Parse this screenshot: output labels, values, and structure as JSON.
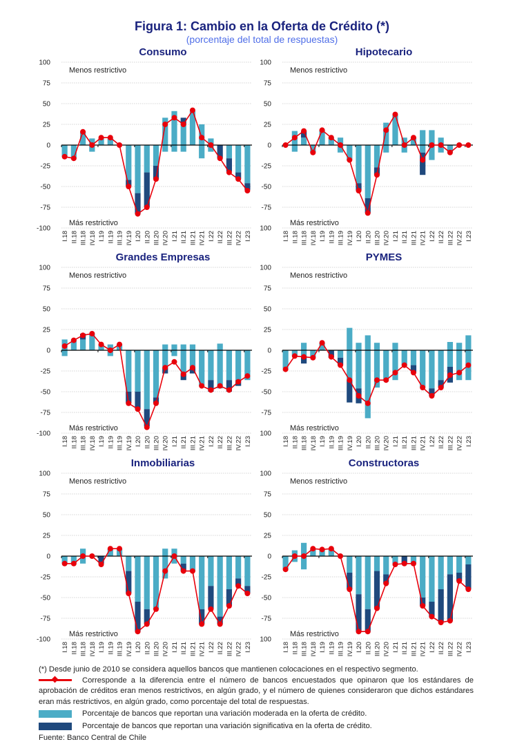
{
  "header": {
    "title": "Figura 1: Cambio en la Oferta de Crédito (*)",
    "subtitle": "(porcentaje del total de respuestas)"
  },
  "colors": {
    "moderate": "#4bacc6",
    "significant": "#1f497d",
    "net_line": "#e8000b",
    "title": "#1a237e",
    "subtitle": "#4f6ee8"
  },
  "chart_data": [
    {
      "type": "bar",
      "title": "Consumo",
      "annotation_top": "Menos restrictivo",
      "annotation_bottom": "Más restrictivo",
      "ylim": [
        -100,
        100
      ],
      "yticks": [
        "100",
        "75",
        "50",
        "25",
        "0",
        "-25",
        "-50",
        "-75",
        "-100"
      ],
      "categories": [
        "I.18",
        "II.18",
        "III.18",
        "IV.18",
        "I.19",
        "II.19",
        "III.19",
        "IV.19",
        "I.20",
        "II.20",
        "III.20",
        "IV.20",
        "I.21",
        "II.21",
        "III.21",
        "IV.21",
        "I.22",
        "II.22",
        "III.22",
        "IV.22",
        "I.23"
      ],
      "series": [
        {
          "name": "moderada_positiva",
          "values": [
            0,
            0,
            16,
            8,
            8,
            8,
            0,
            0,
            0,
            0,
            0,
            33,
            41,
            25,
            41,
            25,
            8,
            0,
            0,
            0,
            0
          ]
        },
        {
          "name": "significativa_positiva",
          "values": [
            0,
            0,
            0,
            0,
            0,
            0,
            0,
            0,
            0,
            0,
            0,
            0,
            0,
            8,
            0,
            0,
            0,
            0,
            0,
            0,
            0
          ]
        },
        {
          "name": "moderada_negativa",
          "values": [
            -14,
            -16,
            0,
            -8,
            0,
            0,
            0,
            -42,
            -58,
            -33,
            -25,
            -8,
            -8,
            -8,
            0,
            -16,
            -8,
            0,
            -16,
            -33,
            -46
          ]
        },
        {
          "name": "significativa_negativa",
          "values": [
            0,
            0,
            0,
            0,
            0,
            0,
            0,
            -8,
            -25,
            -42,
            -16,
            0,
            0,
            0,
            0,
            0,
            0,
            -16,
            -16,
            -8,
            -8
          ]
        },
        {
          "name": "neto",
          "values": [
            -14,
            -16,
            16,
            0,
            9,
            9,
            0,
            -50,
            -83,
            -75,
            -41,
            25,
            33,
            25,
            42,
            9,
            0,
            -16,
            -33,
            -41,
            -55
          ]
        }
      ]
    },
    {
      "type": "bar",
      "title": "Hipotecario",
      "annotation_top": "Menos restrictivo",
      "annotation_bottom": "Más restrictivo",
      "ylim": [
        -100,
        100
      ],
      "yticks": [
        "100",
        "75",
        "50",
        "25",
        "0",
        "-25",
        "-50",
        "-75",
        "100"
      ],
      "categories": [
        "I.18",
        "II.18",
        "III.18",
        "IV.18",
        "I.19",
        "II.19",
        "III.19",
        "IV.19",
        "I.20",
        "II.20",
        "III.20",
        "IV.20",
        "I.21",
        "II.21",
        "III.21",
        "IV.21",
        "I.22",
        "II.22",
        "III.22",
        "IV.22",
        "I.23"
      ],
      "series": [
        {
          "name": "moderada_positiva",
          "values": [
            0,
            17,
            9,
            0,
            18,
            9,
            9,
            0,
            0,
            0,
            0,
            27,
            36,
            9,
            9,
            18,
            18,
            9,
            0,
            0,
            0
          ]
        },
        {
          "name": "significativa_positiva",
          "values": [
            0,
            0,
            8,
            0,
            0,
            0,
            0,
            0,
            0,
            0,
            0,
            0,
            0,
            0,
            0,
            0,
            0,
            0,
            0,
            0,
            0
          ]
        },
        {
          "name": "moderada_negativa",
          "values": [
            0,
            -8,
            0,
            -9,
            0,
            0,
            -9,
            -18,
            -46,
            -64,
            -27,
            -9,
            0,
            -9,
            0,
            -9,
            -18,
            -9,
            -9,
            0,
            0
          ]
        },
        {
          "name": "significativa_negativa",
          "values": [
            0,
            0,
            0,
            0,
            0,
            0,
            0,
            0,
            -9,
            -18,
            -9,
            0,
            0,
            0,
            0,
            -27,
            0,
            0,
            0,
            0,
            0
          ]
        },
        {
          "name": "neto",
          "values": [
            0,
            9,
            17,
            -9,
            18,
            9,
            0,
            -18,
            -55,
            -82,
            -36,
            18,
            37,
            0,
            9,
            -18,
            0,
            0,
            -9,
            0,
            0
          ]
        }
      ]
    },
    {
      "type": "bar",
      "title": "Grandes Empresas",
      "annotation_top": "Menos restrictivo",
      "annotation_bottom": "Más restrictivo",
      "ylim": [
        -100,
        100
      ],
      "yticks": [
        "100",
        "75",
        "50",
        "25",
        "0",
        "-25",
        "-50",
        "-75",
        "-100"
      ],
      "categories": [
        "I.18",
        "II.18",
        "III.18",
        "IV.18",
        "I.19",
        "II.19",
        "III.19",
        "IV.19",
        "I.20",
        "II.20",
        "III.20",
        "IV.20",
        "I.21",
        "II.21",
        "III.21",
        "IV.21",
        "I.22",
        "II.22",
        "III.22",
        "IV.22",
        "I.23"
      ],
      "series": [
        {
          "name": "moderada_positiva",
          "values": [
            13,
            13,
            13,
            20,
            7,
            7,
            7,
            0,
            0,
            0,
            0,
            7,
            7,
            7,
            7,
            0,
            0,
            8,
            0,
            0,
            0
          ]
        },
        {
          "name": "significativa_positiva",
          "values": [
            0,
            0,
            7,
            0,
            0,
            0,
            0,
            0,
            0,
            0,
            0,
            0,
            0,
            0,
            0,
            0,
            0,
            0,
            0,
            0,
            0
          ]
        },
        {
          "name": "moderada_negativa",
          "values": [
            -7,
            0,
            0,
            0,
            0,
            -7,
            0,
            -50,
            -50,
            -71,
            -57,
            -21,
            -7,
            -29,
            -21,
            -43,
            -36,
            -46,
            -36,
            -36,
            -36
          ]
        },
        {
          "name": "significativa_negativa",
          "values": [
            0,
            0,
            0,
            0,
            0,
            0,
            0,
            -14,
            -21,
            -21,
            -7,
            -7,
            0,
            -7,
            -7,
            0,
            -14,
            0,
            -14,
            -7,
            0
          ]
        },
        {
          "name": "neto",
          "values": [
            5,
            12,
            18,
            20,
            7,
            0,
            7,
            -64,
            -71,
            -93,
            -64,
            -21,
            -14,
            -29,
            -21,
            -43,
            -48,
            -43,
            -48,
            -38,
            -31
          ]
        }
      ]
    },
    {
      "type": "bar",
      "title": "PYMES",
      "annotation_top": "Menos restrictivo",
      "annotation_bottom": "Más restrictivo",
      "ylim": [
        -100,
        100
      ],
      "yticks": [
        "100",
        "75",
        "50",
        "25",
        "0",
        "-25",
        "-50",
        "-75",
        "100"
      ],
      "categories": [
        "I.18",
        "II.18",
        "III.18",
        "IV.18",
        "I.19",
        "II.19",
        "III.19",
        "IV.19",
        "I.20",
        "II.20",
        "III.20",
        "IV.20",
        "I.21",
        "II.21",
        "III.21",
        "IV.21",
        "I.22",
        "II.22",
        "III.22",
        "IV.22",
        "I.23"
      ],
      "series": [
        {
          "name": "moderada_positiva",
          "values": [
            0,
            0,
            9,
            0,
            9,
            0,
            0,
            27,
            9,
            18,
            9,
            0,
            9,
            0,
            0,
            0,
            0,
            0,
            10,
            9,
            18
          ]
        },
        {
          "name": "significativa_positiva",
          "values": [
            0,
            0,
            0,
            0,
            0,
            0,
            0,
            0,
            0,
            0,
            0,
            0,
            0,
            0,
            0,
            0,
            0,
            0,
            0,
            0,
            0
          ]
        },
        {
          "name": "moderada_negativa",
          "values": [
            -22,
            -7,
            -7,
            -9,
            0,
            0,
            -9,
            -36,
            -46,
            -82,
            -45,
            -36,
            -36,
            -18,
            -18,
            -45,
            -46,
            -36,
            -20,
            -36,
            -36
          ]
        },
        {
          "name": "significativa_negativa",
          "values": [
            0,
            0,
            -9,
            0,
            0,
            -9,
            -9,
            -27,
            -18,
            0,
            0,
            0,
            0,
            0,
            -9,
            0,
            -9,
            -9,
            -19,
            0,
            0
          ]
        },
        {
          "name": "neto",
          "values": [
            -23,
            -7,
            -8,
            -9,
            9,
            -8,
            -18,
            -36,
            -55,
            -64,
            -36,
            -36,
            -27,
            -18,
            -27,
            -45,
            -55,
            -45,
            -30,
            -27,
            -18
          ]
        }
      ]
    },
    {
      "type": "bar",
      "title": "Inmobiliarias",
      "annotation_top": "Menos restrictivo",
      "annotation_bottom": "Más restrictivo",
      "ylim": [
        -100,
        100
      ],
      "yticks": [
        "100",
        "75",
        "50",
        "25",
        "0",
        "-25",
        "-50",
        "-75",
        "-100"
      ],
      "categories": [
        "I.18",
        "II.18",
        "III.18",
        "IV.18",
        "I.19",
        "II.19",
        "III.19",
        "IV.19",
        "I.20",
        "II.20",
        "III.20",
        "IV.20",
        "I.21",
        "II.21",
        "III.21",
        "IV.21",
        "I.22",
        "II.22",
        "III.22",
        "IV.22",
        "I.23"
      ],
      "series": [
        {
          "name": "moderada_positiva",
          "values": [
            0,
            0,
            9,
            0,
            0,
            9,
            9,
            0,
            0,
            0,
            0,
            9,
            9,
            0,
            0,
            0,
            0,
            0,
            0,
            0,
            0
          ]
        },
        {
          "name": "significativa_positiva",
          "values": [
            0,
            0,
            0,
            0,
            0,
            0,
            0,
            0,
            0,
            0,
            0,
            0,
            0,
            0,
            0,
            0,
            0,
            0,
            0,
            0,
            0
          ]
        },
        {
          "name": "moderada_negativa",
          "values": [
            -9,
            -9,
            -9,
            0,
            0,
            0,
            0,
            -18,
            -55,
            -64,
            -64,
            -27,
            -9,
            -9,
            -18,
            -64,
            -36,
            -73,
            -40,
            -27,
            -36
          ]
        },
        {
          "name": "significativa_negativa",
          "values": [
            0,
            0,
            0,
            0,
            -9,
            0,
            0,
            -27,
            -36,
            -18,
            0,
            0,
            0,
            -9,
            0,
            -18,
            -28,
            -9,
            -20,
            -9,
            -9
          ]
        },
        {
          "name": "neto",
          "values": [
            -9,
            -9,
            0,
            0,
            -10,
            9,
            9,
            -45,
            -91,
            -82,
            -64,
            -18,
            0,
            -18,
            -18,
            -82,
            -64,
            -82,
            -60,
            -36,
            -45
          ]
        }
      ]
    },
    {
      "type": "bar",
      "title": "Constructoras",
      "annotation_top": "Menos restrictivo",
      "annotation_bottom": "Más restrictivo",
      "ylim": [
        -100,
        100
      ],
      "yticks": [
        "100",
        "75",
        "50",
        "25",
        "0",
        "-25",
        "-50",
        "-75",
        "100"
      ],
      "categories": [
        "I.18",
        "II.18",
        "III.18",
        "IV.18",
        "I.19",
        "II.19",
        "III.19",
        "IV.19",
        "I.20",
        "II.20",
        "III.20",
        "IV.20",
        "I.21",
        "II.21",
        "III.21",
        "IV.21",
        "I.22",
        "II.22",
        "III.22",
        "IV.22",
        "I.23"
      ],
      "series": [
        {
          "name": "moderada_positiva",
          "values": [
            0,
            7,
            16,
            9,
            9,
            9,
            0,
            0,
            0,
            0,
            0,
            0,
            0,
            0,
            0,
            0,
            0,
            0,
            0,
            0,
            0
          ]
        },
        {
          "name": "significativa_positiva",
          "values": [
            0,
            0,
            0,
            0,
            0,
            0,
            0,
            0,
            0,
            0,
            0,
            0,
            0,
            0,
            0,
            0,
            0,
            0,
            0,
            0,
            0
          ]
        },
        {
          "name": "moderada_negativa",
          "values": [
            -16,
            -7,
            -16,
            0,
            0,
            0,
            0,
            -20,
            -46,
            -64,
            -18,
            -22,
            -9,
            0,
            -9,
            -50,
            -55,
            -40,
            -22,
            -20,
            -10
          ]
        },
        {
          "name": "significativa_negativa",
          "values": [
            0,
            0,
            0,
            0,
            0,
            0,
            0,
            -20,
            -45,
            -27,
            -45,
            -11,
            0,
            -9,
            0,
            -10,
            -18,
            -40,
            -56,
            -10,
            -30
          ]
        },
        {
          "name": "neto",
          "values": [
            -16,
            0,
            0,
            9,
            8,
            9,
            0,
            -40,
            -91,
            -91,
            -63,
            -33,
            -10,
            -9,
            -9,
            -60,
            -73,
            -80,
            -78,
            -30,
            -40
          ]
        }
      ]
    }
  ],
  "notes": {
    "asterisk": "(*) Desde junio de 2010 se considera aquellos bancos que mantienen colocaciones en el respectivo segmento.",
    "line_legend": "Corresponde a la diferencia entre el número de bancos encuestados que opinaron que los estándares de aprobación de créditos eran menos restrictivos, en algún grado, y el número de quienes consideraron que dichos estándares eran más restrictivos, en algún grado, como porcentaje del total de respuestas.",
    "moderate_legend": "Porcentaje de bancos que reportan una variación moderada en la oferta de crédito.",
    "significant_legend": "Porcentaje de bancos que reportan una variación significativa en la oferta de crédito.",
    "source": "Fuente: Banco Central de Chile"
  }
}
